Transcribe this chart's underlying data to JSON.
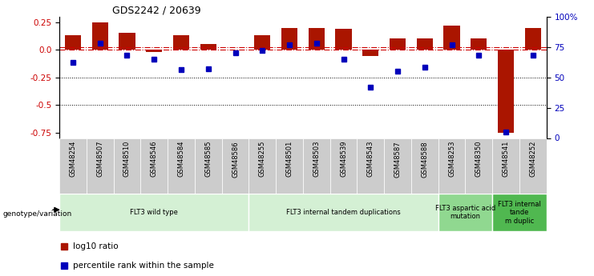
{
  "title": "GDS2242 / 20639",
  "samples": [
    "GSM48254",
    "GSM48507",
    "GSM48510",
    "GSM48546",
    "GSM48584",
    "GSM48585",
    "GSM48586",
    "GSM48255",
    "GSM48501",
    "GSM48503",
    "GSM48539",
    "GSM48543",
    "GSM48587",
    "GSM48588",
    "GSM48253",
    "GSM48350",
    "GSM48541",
    "GSM48252"
  ],
  "log10_ratio": [
    0.13,
    0.25,
    0.15,
    -0.02,
    0.13,
    0.05,
    0.0,
    0.13,
    0.2,
    0.2,
    0.19,
    -0.06,
    0.1,
    0.1,
    0.22,
    0.1,
    -0.75,
    0.2
  ],
  "percentile_rank": [
    62,
    78,
    68,
    65,
    56,
    57,
    70,
    72,
    77,
    78,
    65,
    42,
    55,
    58,
    77,
    68,
    5,
    68
  ],
  "group_labels": [
    "FLT3 wild type",
    "FLT3 internal tandem duplications",
    "FLT3 aspartic acid\nmutation",
    "FLT3 internal\ntande\nm duplic"
  ],
  "group_ranges": [
    [
      0,
      7
    ],
    [
      7,
      14
    ],
    [
      14,
      16
    ],
    [
      16,
      18
    ]
  ],
  "group_colors": [
    "#d4f0d4",
    "#d4f0d4",
    "#90d890",
    "#50b850"
  ],
  "bar_color": "#aa1500",
  "dot_color": "#0000bb",
  "ref_line_color": "#cc0000",
  "dot_ref_value": 75,
  "ylim_left": [
    -0.8,
    0.3
  ],
  "ylim_right": [
    0,
    100
  ],
  "yticks_left": [
    0.25,
    0.0,
    -0.25,
    -0.5,
    -0.75
  ],
  "yticks_right": [
    0,
    25,
    50,
    75,
    100
  ],
  "hlines": [
    -0.25,
    -0.5
  ],
  "legend_items": [
    "log10 ratio",
    "percentile rank within the sample"
  ],
  "legend_colors": [
    "#aa1500",
    "#0000bb"
  ],
  "bg_color": "#ffffff"
}
